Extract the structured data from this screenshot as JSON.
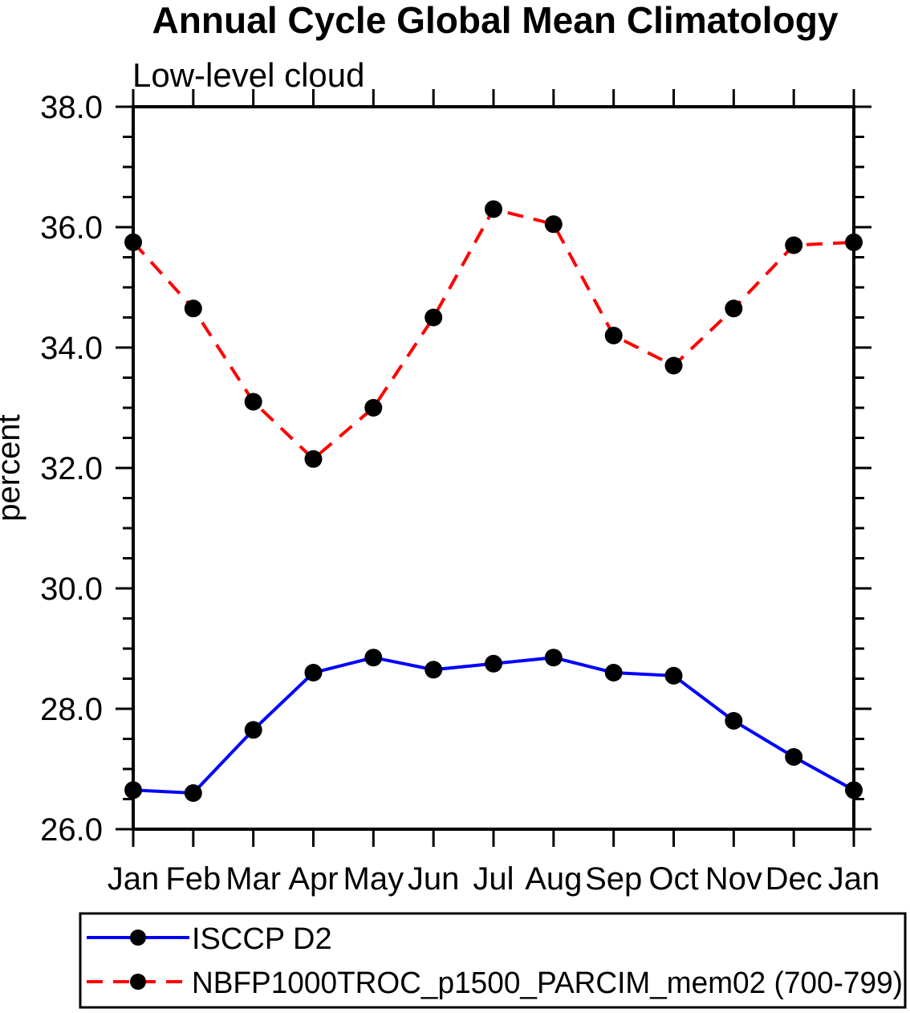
{
  "chart_data": {
    "type": "line",
    "title": "Annual Cycle Global Mean Climatology",
    "subtitle": "Low-level cloud",
    "ylabel": "percent",
    "xlabel": "",
    "ylim": [
      26.0,
      38.0
    ],
    "ytick_values": [
      26.0,
      28.0,
      30.0,
      32.0,
      34.0,
      36.0,
      38.0
    ],
    "ytick_labels": [
      "26.0",
      "28.0",
      "30.0",
      "32.0",
      "34.0",
      "36.0",
      "38.0"
    ],
    "yminor_step": 0.5,
    "grid": false,
    "categories": [
      "Jan",
      "Feb",
      "Mar",
      "Apr",
      "May",
      "Jun",
      "Jul",
      "Aug",
      "Sep",
      "Oct",
      "Nov",
      "Dec",
      "Jan"
    ],
    "series": [
      {
        "name": "ISCCP D2",
        "color": "#0000ff",
        "line_style": "solid",
        "marker": "filled-circle",
        "marker_color": "#000000",
        "values": [
          26.65,
          26.6,
          27.65,
          28.6,
          28.85,
          28.65,
          28.75,
          28.85,
          28.6,
          28.55,
          27.8,
          27.2,
          26.65
        ]
      },
      {
        "name": "NBFP1000TROC_p1500_PARCIM_mem02 (700-799)",
        "color": "#ff0000",
        "line_style": "dashed",
        "marker": "filled-circle",
        "marker_color": "#000000",
        "values": [
          35.75,
          34.65,
          33.1,
          32.15,
          33.0,
          34.5,
          36.3,
          36.05,
          34.2,
          33.7,
          34.65,
          35.7,
          35.75
        ]
      }
    ],
    "legend_position": "bottom-left"
  }
}
